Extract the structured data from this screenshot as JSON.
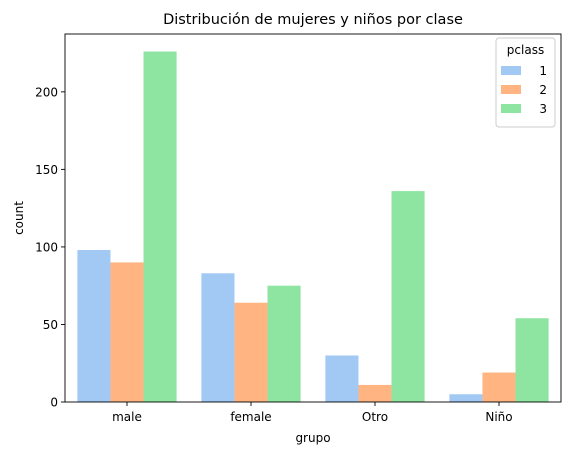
{
  "chart_data": {
    "type": "bar",
    "title": "Distribución de mujeres y niños por clase",
    "xlabel": "grupo",
    "ylabel": "count",
    "categories": [
      "male",
      "female",
      "Otro",
      "Niño"
    ],
    "series": [
      {
        "name": "1",
        "color": "#a1c9f4",
        "values": [
          98,
          83,
          30,
          5
        ]
      },
      {
        "name": "2",
        "color": "#ffb482",
        "values": [
          90,
          64,
          11,
          19
        ]
      },
      {
        "name": "3",
        "color": "#8de5a1",
        "values": [
          226,
          75,
          136,
          54
        ]
      }
    ],
    "ylim": [
      0,
      237.3
    ],
    "yticks": [
      0,
      50,
      100,
      150,
      200
    ],
    "grid": false,
    "legend": {
      "title": "pclass",
      "position": "top-right"
    }
  }
}
